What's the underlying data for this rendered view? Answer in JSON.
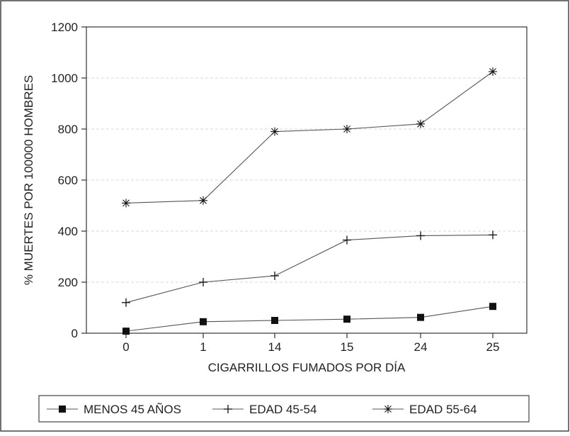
{
  "chart_data": {
    "type": "line",
    "categories": [
      "0",
      "1",
      "14",
      "15",
      "24",
      "25"
    ],
    "series": [
      {
        "name": "MENOS 45 AÑOS",
        "marker": "square",
        "values": [
          8,
          45,
          50,
          55,
          62,
          105
        ]
      },
      {
        "name": "EDAD 45-54",
        "marker": "plus",
        "values": [
          120,
          200,
          225,
          365,
          382,
          385
        ]
      },
      {
        "name": "EDAD 55-64",
        "marker": "star",
        "values": [
          510,
          520,
          790,
          800,
          820,
          1025
        ]
      }
    ],
    "title": "",
    "xlabel": "CIGARRILLOS FUMADOS POR DÍA",
    "ylabel": "% MUERTES POR 100000 HOMBRES",
    "ylim": [
      0,
      1200
    ],
    "yticks": [
      0,
      200,
      400,
      600,
      800,
      1000,
      1200
    ],
    "grid": true,
    "legend_position": "bottom",
    "colors": {
      "line": "#555555",
      "marker": "#111111",
      "grid": "#d8d8d8",
      "frame": "#333333"
    }
  }
}
